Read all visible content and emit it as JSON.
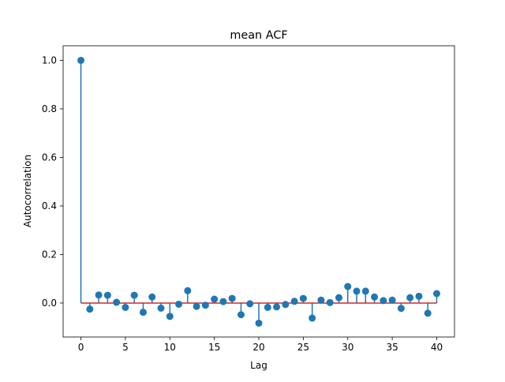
{
  "chart_data": {
    "type": "stem",
    "title": "mean ACF",
    "xlabel": "Lag",
    "ylabel": "Autocorrelation",
    "xlim": [
      -2,
      42
    ],
    "ylim": [
      -0.14,
      1.06
    ],
    "xticks": [
      0,
      5,
      10,
      15,
      20,
      25,
      30,
      35,
      40
    ],
    "xtick_labels": [
      "0",
      "5",
      "10",
      "15",
      "20",
      "25",
      "30",
      "35",
      "40"
    ],
    "yticks": [
      0.0,
      0.2,
      0.4,
      0.6,
      0.8,
      1.0
    ],
    "ytick_labels": [
      "0.0",
      "0.2",
      "0.4",
      "0.6",
      "0.8",
      "1.0"
    ],
    "grid": false,
    "baseline": 0.0,
    "x": [
      0,
      1,
      2,
      3,
      4,
      5,
      6,
      7,
      8,
      9,
      10,
      11,
      12,
      13,
      14,
      15,
      16,
      17,
      18,
      19,
      20,
      21,
      22,
      23,
      24,
      25,
      26,
      27,
      28,
      29,
      30,
      31,
      32,
      33,
      34,
      35,
      36,
      37,
      38,
      39,
      40
    ],
    "values": [
      1.0,
      -0.025,
      0.033,
      0.032,
      0.003,
      -0.018,
      0.032,
      -0.038,
      0.025,
      -0.021,
      -0.055,
      -0.005,
      0.051,
      -0.014,
      -0.009,
      0.016,
      0.006,
      0.019,
      -0.048,
      -0.003,
      -0.083,
      -0.018,
      -0.016,
      -0.006,
      0.007,
      0.019,
      -0.062,
      0.012,
      0.002,
      0.022,
      0.068,
      0.049,
      0.049,
      0.025,
      0.01,
      0.012,
      -0.022,
      0.022,
      0.028,
      -0.042,
      0.039
    ],
    "colors": {
      "stem": "#1f77b4",
      "marker": "#1f77b4",
      "baseline": "#d62728",
      "axes": "#000000"
    }
  }
}
